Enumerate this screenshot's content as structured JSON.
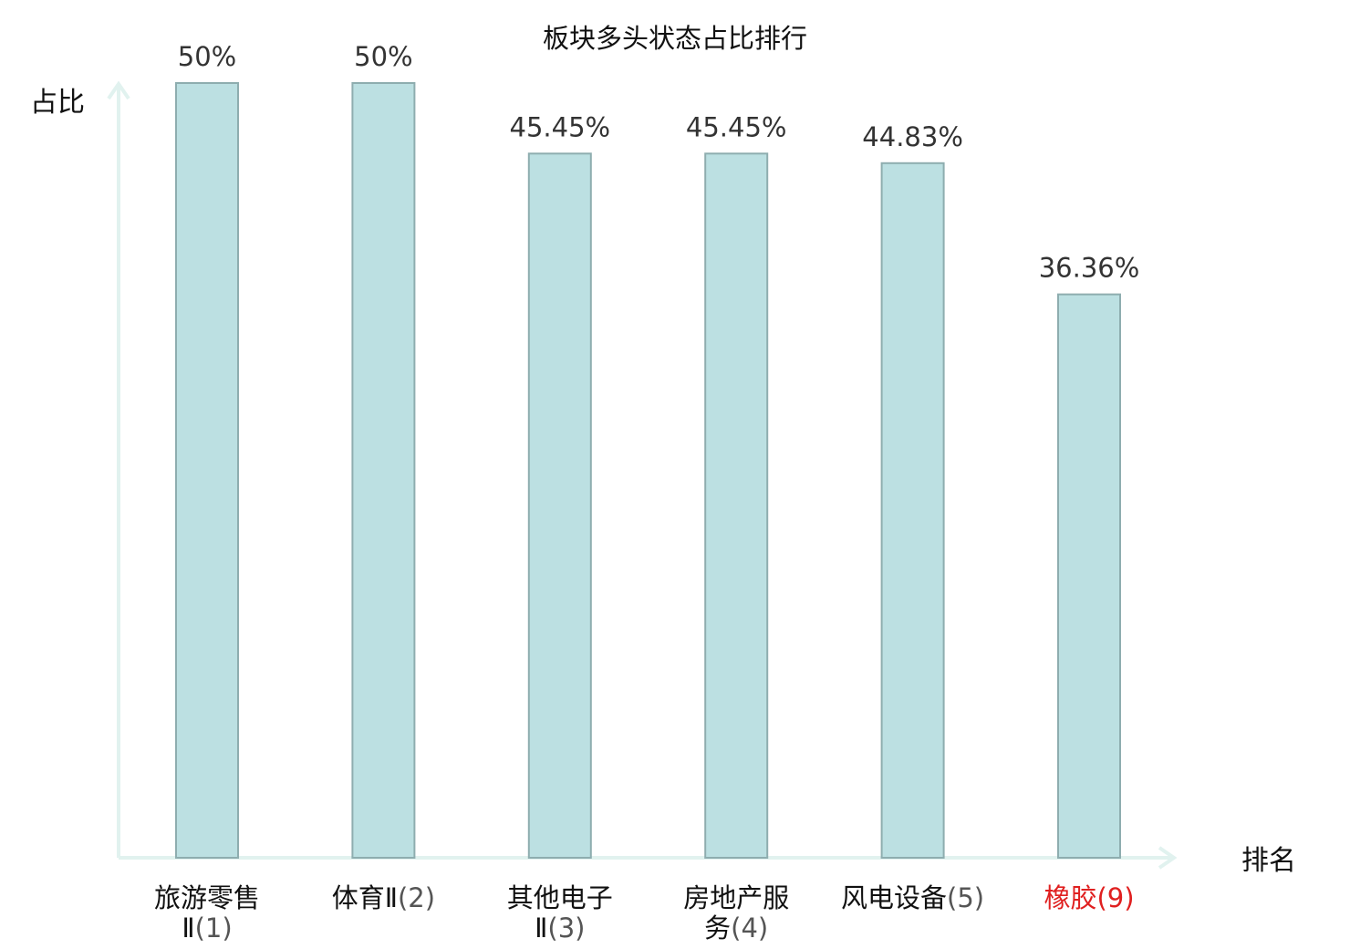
{
  "chart_data": {
    "type": "bar",
    "title": "板块多头状态占比排行",
    "xlabel": "排名",
    "ylabel": "占比",
    "ylim": [
      0,
      50
    ],
    "categories": [
      {
        "name_lines": [
          "旅游零售",
          "Ⅱ"
        ],
        "rank": "(1)",
        "highlight": false
      },
      {
        "name_lines": [
          "体育Ⅱ"
        ],
        "rank": "(2)",
        "highlight": false
      },
      {
        "name_lines": [
          "其他电子",
          "Ⅱ"
        ],
        "rank": "(3)",
        "highlight": false
      },
      {
        "name_lines": [
          "房地产服",
          "务"
        ],
        "rank": "(4)",
        "highlight": false
      },
      {
        "name_lines": [
          "风电设备"
        ],
        "rank": "(5)",
        "highlight": false
      },
      {
        "name_lines": [
          "橡胶"
        ],
        "rank": "(9)",
        "highlight": true
      }
    ],
    "values": [
      50,
      50,
      45.45,
      45.45,
      44.83,
      36.36
    ],
    "value_labels": [
      "50%",
      "50%",
      "45.45%",
      "45.45%",
      "44.83%",
      "36.36%"
    ],
    "colors": {
      "bar_fill": "#bce0e2",
      "bar_stroke": "#8eadaf",
      "axis": "#e1f2ef",
      "highlight_text": "#e02020"
    }
  }
}
